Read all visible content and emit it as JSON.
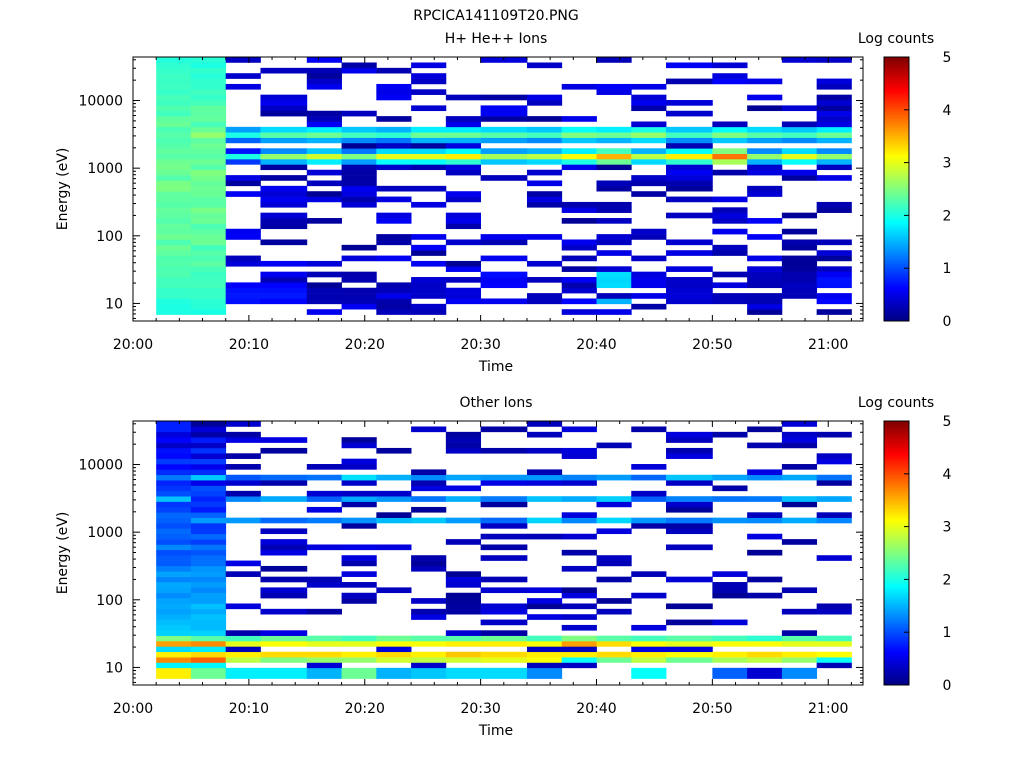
{
  "figure_title": "RPCICA141109T20.PNG",
  "chart_data": [
    {
      "type": "heatmap",
      "title": "H+ He++ Ions",
      "xlabel": "Time",
      "ylabel": "Energy (eV)",
      "x_ticks": [
        "20:00",
        "20:10",
        "20:20",
        "20:30",
        "20:40",
        "20:50",
        "21:00"
      ],
      "x_range": [
        "20:00",
        "21:03"
      ],
      "y_scale": "log",
      "y_ticks": [
        "10",
        "100",
        "1000",
        "10000"
      ],
      "y_range": [
        5.5,
        44000
      ],
      "colorbar": {
        "label": "Log counts",
        "ticks": [
          "0",
          "1",
          "2",
          "3",
          "4",
          "5"
        ],
        "range": [
          0,
          5
        ]
      },
      "energy_bins_per_column": 48,
      "time_columns": [
        {
          "start": "20:02",
          "end": "20:05"
        },
        {
          "start": "20:05",
          "end": "20:08"
        },
        {
          "start": "20:08",
          "end": "20:11"
        },
        {
          "start": "20:11",
          "end": "20:15"
        },
        {
          "start": "20:15",
          "end": "20:18"
        },
        {
          "start": "20:18",
          "end": "20:21"
        },
        {
          "start": "20:21",
          "end": "20:24"
        },
        {
          "start": "20:24",
          "end": "20:27"
        },
        {
          "start": "20:27",
          "end": "20:30"
        },
        {
          "start": "20:30",
          "end": "20:34"
        },
        {
          "start": "20:34",
          "end": "20:37"
        },
        {
          "start": "20:37",
          "end": "20:40"
        },
        {
          "start": "20:40",
          "end": "20:43"
        },
        {
          "start": "20:43",
          "end": "20:46"
        },
        {
          "start": "20:46",
          "end": "20:50"
        },
        {
          "start": "20:50",
          "end": "20:53"
        },
        {
          "start": "20:53",
          "end": "20:56"
        },
        {
          "start": "20:56",
          "end": "20:59"
        },
        {
          "start": "20:59",
          "end": "21:02"
        }
      ],
      "features": {
        "dense_columns": [
          0,
          1
        ],
        "dense_level_range": [
          1.6,
          2.4
        ],
        "main_band_energy_eV": 1550,
        "main_band_levels": [
          2.3,
          2.3,
          2.0,
          2.6,
          2.9,
          2.5,
          3.0,
          3.0,
          3.2,
          2.7,
          2.8,
          3.1,
          3.5,
          2.8,
          3.2,
          3.8,
          2.6,
          3.0,
          2.6
        ],
        "secondary_band_energy_eV": 3200,
        "secondary_band_levels": [
          2.3,
          2.6,
          2.0,
          2.3,
          2.4,
          2.2,
          2.1,
          2.4,
          2.4,
          2.3,
          2.2,
          2.5,
          2.4,
          2.6,
          2.2,
          2.5,
          2.3,
          2.2,
          2.4
        ],
        "low_energy_band_eV": [
          10,
          25
        ],
        "low_energy_levels": [
          2.2,
          2.2,
          0.8,
          0.8,
          0.3,
          0.3,
          0.3,
          0.5,
          0.6,
          0.7,
          0.4,
          0.8,
          1.8,
          0.6,
          0.5,
          0.4,
          0.3,
          0.3,
          0.8
        ],
        "sparse_level_range": [
          0.1,
          0.6
        ]
      }
    },
    {
      "type": "heatmap",
      "title": "Other Ions",
      "xlabel": "Time",
      "ylabel": "Energy (eV)",
      "x_ticks": [
        "20:00",
        "20:10",
        "20:20",
        "20:30",
        "20:40",
        "20:50",
        "21:00"
      ],
      "x_range": [
        "20:00",
        "21:03"
      ],
      "y_scale": "log",
      "y_ticks": [
        "10",
        "100",
        "1000",
        "10000"
      ],
      "y_range": [
        5.5,
        44000
      ],
      "colorbar": {
        "label": "Log counts",
        "ticks": [
          "0",
          "1",
          "2",
          "3",
          "4",
          "5"
        ],
        "range": [
          0,
          5
        ]
      },
      "energy_bins_per_column": 48,
      "time_columns": [
        {
          "start": "20:02",
          "end": "20:05"
        },
        {
          "start": "20:05",
          "end": "20:08"
        },
        {
          "start": "20:08",
          "end": "20:11"
        },
        {
          "start": "20:11",
          "end": "20:15"
        },
        {
          "start": "20:15",
          "end": "20:18"
        },
        {
          "start": "20:18",
          "end": "20:21"
        },
        {
          "start": "20:21",
          "end": "20:24"
        },
        {
          "start": "20:24",
          "end": "20:27"
        },
        {
          "start": "20:27",
          "end": "20:30"
        },
        {
          "start": "20:30",
          "end": "20:34"
        },
        {
          "start": "20:34",
          "end": "20:37"
        },
        {
          "start": "20:37",
          "end": "20:40"
        },
        {
          "start": "20:40",
          "end": "20:43"
        },
        {
          "start": "20:43",
          "end": "20:46"
        },
        {
          "start": "20:46",
          "end": "20:50"
        },
        {
          "start": "20:50",
          "end": "20:53"
        },
        {
          "start": "20:53",
          "end": "20:56"
        },
        {
          "start": "20:56",
          "end": "20:59"
        },
        {
          "start": "20:59",
          "end": "21:02"
        }
      ],
      "features": {
        "dense_columns": [
          0,
          1
        ],
        "dense_level_range": [
          0.3,
          1.9
        ],
        "band_energies_eV": [
          6300,
          3100,
          1550
        ],
        "band_levels": [
          1.4,
          1.6,
          1.2,
          1.3,
          1.1,
          1.5,
          1.6,
          1.4,
          1.3,
          1.2,
          1.5,
          1.3,
          1.6,
          1.2,
          1.4,
          1.3,
          1.2,
          1.5,
          1.3
        ],
        "low_energy_bins_eV": [
          27,
          21,
          16,
          12,
          9,
          7
        ],
        "low_energy_levels": [
          [
            2.5,
            2.3,
            2.2,
            2.4,
            2.3,
            2.2,
            2.4,
            2.3,
            2.3,
            2.4,
            2.2,
            2.5,
            2.3,
            2.2,
            2.3,
            2.2,
            2.1,
            2.3,
            2.2
          ],
          [
            3.6,
            3.7,
            3.0,
            3.1,
            3.0,
            3.0,
            3.1,
            3.1,
            3.2,
            3.2,
            3.1,
            3.6,
            3.3,
            3.1,
            3.0,
            3.1,
            3.1,
            3.0,
            3.0
          ],
          [
            3.2,
            3.3,
            3.2,
            3.3,
            3.3,
            3.2,
            3.3,
            3.2,
            3.4,
            3.3,
            3.2,
            3.2,
            3.3,
            3.2,
            3.1,
            3.2,
            3.3,
            3.2,
            3.1
          ],
          [
            3.7,
            3.9,
            2.8,
            2.5,
            2.6,
            2.6,
            2.9,
            2.8,
            2.9,
            3.0,
            3.1,
            1.9,
            2.4,
            2.8,
            2.4,
            2.7,
            2.8,
            2.6,
            1.9
          ],
          [
            3.2,
            2.4,
            1.8,
            1.8,
            1.5,
            2.4,
            1.5,
            1.6,
            1.7,
            1.7,
            1.3,
            0.0,
            0.0,
            1.9,
            0.0,
            1.1,
            0.4,
            1.3,
            0.0
          ],
          [
            3.2,
            2.4,
            1.8,
            1.8,
            1.5,
            2.4,
            1.5,
            1.6,
            1.7,
            1.7,
            1.3,
            0.0,
            0.0,
            1.9,
            0.0,
            1.1,
            0.4,
            1.3,
            0.0
          ]
        ],
        "sparse_level_range": [
          0.1,
          0.5
        ]
      }
    }
  ]
}
